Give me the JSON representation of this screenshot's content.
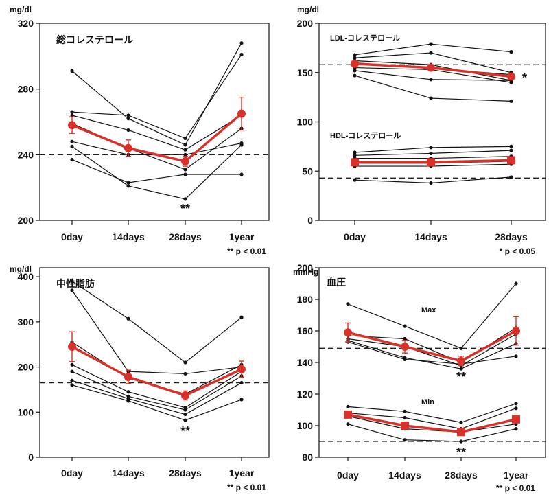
{
  "chart_data": [
    {
      "type": "line",
      "unit": "mg/dl",
      "title": "総コレステロール",
      "categories": [
        "0day",
        "14days",
        "28days",
        "1year"
      ],
      "ylim": [
        200,
        320
      ],
      "yticks": [
        "200",
        "240",
        "280",
        "320"
      ],
      "reference_line": 240,
      "mean": [
        258,
        244,
        236,
        265
      ],
      "error": [
        5,
        5,
        3,
        10
      ],
      "individuals": [
        [
          291,
          262,
          246,
          308
        ],
        [
          266,
          264,
          250,
          301
        ],
        [
          264,
          255,
          243,
          264
        ],
        [
          259,
          244,
          231,
          256
        ],
        [
          248,
          240,
          240,
          247
        ],
        [
          245,
          221,
          213,
          246
        ],
        [
          237,
          223,
          228,
          228
        ]
      ],
      "significance": [
        "",
        "",
        "**",
        ""
      ],
      "footnote": "** p < 0.01"
    },
    {
      "type": "line",
      "unit": "mg/dl",
      "categories": [
        "0day",
        "14days",
        "28days"
      ],
      "ylim": [
        0,
        200
      ],
      "yticks": [
        "0",
        "50",
        "100",
        "150",
        "200"
      ],
      "reference_lines": [
        158,
        43
      ],
      "groups": [
        {
          "name": "LDL-コレステロール",
          "mean": [
            159,
            155,
            146
          ],
          "individuals": [
            [
              168,
              179,
              171
            ],
            [
              165,
              170,
              150
            ],
            [
              162,
              158,
              142
            ],
            [
              160,
              154,
              148
            ],
            [
              155,
              153,
              140
            ],
            [
              152,
              143,
              142
            ],
            [
              147,
              124,
              121
            ]
          ],
          "significance": [
            "",
            "",
            "*"
          ]
        },
        {
          "name": "HDL-コレステロール",
          "mean": [
            59,
            59,
            61
          ],
          "individuals": [
            [
              69,
              74,
              75
            ],
            [
              66,
              68,
              71
            ],
            [
              63,
              63,
              65
            ],
            [
              58,
              58,
              60
            ],
            [
              55,
              55,
              57
            ],
            [
              41,
              38,
              44
            ]
          ],
          "significance": [
            "",
            "",
            ""
          ]
        }
      ],
      "footnote": "* p < 0.05"
    },
    {
      "type": "line",
      "unit": "mg/dl",
      "title": "中性脂肪",
      "categories": [
        "0day",
        "14days",
        "28days",
        "1year"
      ],
      "ylim": [
        0,
        420
      ],
      "yticks": [
        "0",
        "100",
        "200",
        "300",
        "400"
      ],
      "reference_line": 165,
      "mean": [
        245,
        178,
        137,
        195
      ],
      "error": [
        33,
        15,
        10,
        18
      ],
      "individuals": [
        [
          390,
          307,
          210,
          310
        ],
        [
          370,
          190,
          185,
          200
        ],
        [
          255,
          175,
          140,
          205
        ],
        [
          205,
          145,
          110,
          190
        ],
        [
          190,
          135,
          105,
          180
        ],
        [
          170,
          130,
          95,
          165
        ],
        [
          160,
          125,
          82,
          128
        ]
      ],
      "significance": [
        "",
        "",
        "**",
        ""
      ],
      "footnote": "** p < 0.01"
    },
    {
      "type": "line",
      "unit": "mmHg",
      "title": "血圧",
      "categories": [
        "0day",
        "14days",
        "28days",
        "1year"
      ],
      "ylim": [
        80,
        200
      ],
      "yticks": [
        "80",
        "100",
        "120",
        "140",
        "160",
        "180",
        "200"
      ],
      "reference_lines": [
        149,
        90
      ],
      "groups": [
        {
          "name": "Max",
          "mean": [
            159,
            150,
            141,
            160
          ],
          "error": [
            6,
            4,
            3,
            9
          ],
          "individuals": [
            [
              177,
              163,
              149,
              190
            ],
            [
              157,
              155,
              140,
              162
            ],
            [
              155,
              150,
              138,
              158
            ],
            [
              154,
              143,
              136,
              152
            ],
            [
              153,
              142,
              139,
              144
            ]
          ],
          "significance": [
            "",
            "",
            "**",
            ""
          ]
        },
        {
          "name": "Min",
          "mean": [
            107,
            100,
            96,
            104
          ],
          "individuals": [
            [
              112,
              109,
              102,
              114
            ],
            [
              108,
              105,
              98,
              111
            ],
            [
              106,
              98,
              96,
              101
            ],
            [
              101,
              91,
              90,
              98
            ]
          ],
          "significance": [
            "",
            "",
            "**",
            ""
          ]
        }
      ],
      "footnote": "** p < 0.01"
    }
  ]
}
